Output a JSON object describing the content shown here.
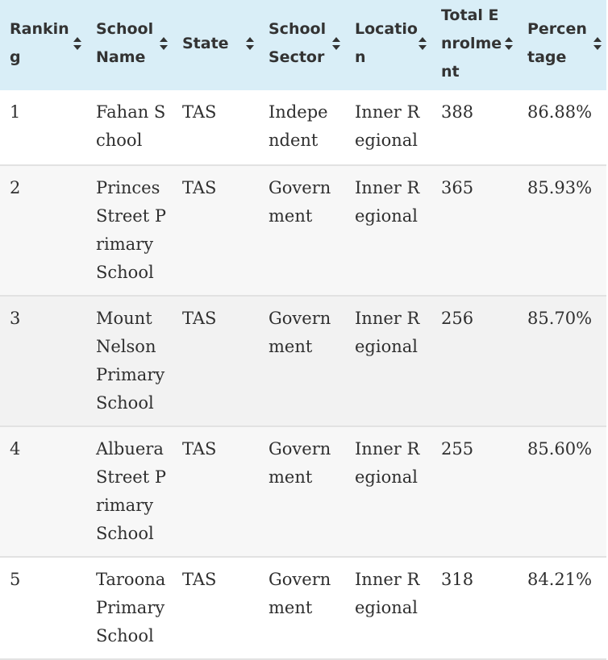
{
  "table": {
    "columns": [
      {
        "label": "Ranking",
        "sortable": true
      },
      {
        "label": "School Name",
        "sortable": true
      },
      {
        "label": "State",
        "sortable": true
      },
      {
        "label": "School Sector",
        "sortable": true
      },
      {
        "label": "Location",
        "sortable": true
      },
      {
        "label": "Total Enrolment",
        "sortable": true
      },
      {
        "label": "Percentage",
        "sortable": true
      }
    ],
    "rows": [
      {
        "ranking": "1",
        "school_name": "Fahan School",
        "state": "TAS",
        "sector": "Independent",
        "location": "Inner Regional",
        "enrolment": "388",
        "percentage": "86.88%"
      },
      {
        "ranking": "2",
        "school_name": "Princes Street Primary School",
        "state": "TAS",
        "sector": "Government",
        "location": "Inner Regional",
        "enrolment": "365",
        "percentage": "85.93%"
      },
      {
        "ranking": "3",
        "school_name": "Mount Nelson Primary School",
        "state": "TAS",
        "sector": "Government",
        "location": "Inner Regional",
        "enrolment": "256",
        "percentage": "85.70%"
      },
      {
        "ranking": "4",
        "school_name": "Albuera Street Primary School",
        "state": "TAS",
        "sector": "Government",
        "location": "Inner Regional",
        "enrolment": "255",
        "percentage": "85.60%"
      },
      {
        "ranking": "5",
        "school_name": "Taroona Primary School",
        "state": "TAS",
        "sector": "Government",
        "location": "Inner Regional",
        "enrolment": "318",
        "percentage": "84.21%"
      }
    ]
  },
  "colors": {
    "header_background": "#d9eef7",
    "row_alt_background": "#f7f7f7",
    "row_divider": "#e2e2e2",
    "text": "#2f2f2f"
  },
  "icons": {
    "sort": "sort-arrows-icon"
  }
}
